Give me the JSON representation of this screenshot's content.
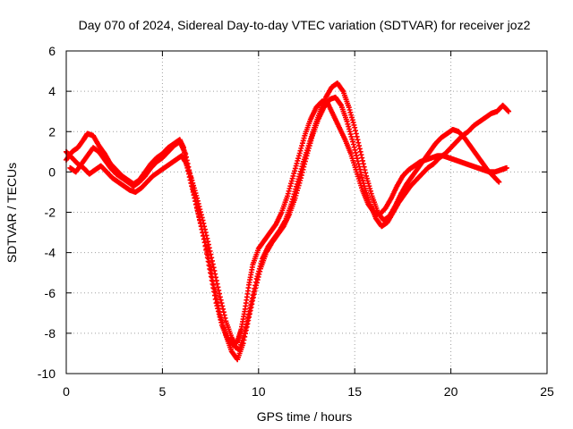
{
  "chart_data": {
    "type": "scatter",
    "title": "Day 070 of 2024, Sidereal Day-to-day VTEC variation (SDTVAR) for receiver joz2",
    "xlabel": "GPS time / hours",
    "ylabel": "SDTVAR / TECUs",
    "xlim": [
      0,
      25
    ],
    "ylim": [
      -10,
      6
    ],
    "x_ticks": [
      "0",
      "5",
      "10",
      "15",
      "20",
      "25"
    ],
    "y_ticks": [
      "-10",
      "-8",
      "-6",
      "-4",
      "-2",
      "0",
      "2",
      "4",
      "6"
    ],
    "grid": true,
    "marker": "+",
    "color": "#ff0000",
    "series": [
      {
        "x": [
          0.0,
          0.3,
          0.6,
          0.9,
          1.1,
          1.4,
          1.7,
          2.0,
          2.3,
          2.6,
          2.9,
          3.2,
          3.5,
          3.8,
          4.1,
          4.4,
          4.7,
          5.0,
          5.3,
          5.6,
          5.9,
          6.1,
          6.3,
          6.6,
          6.9,
          7.2,
          7.5,
          7.8,
          8.1,
          8.4,
          8.7,
          8.9,
          9.1,
          9.3,
          9.5,
          9.7,
          10.0,
          10.3,
          10.6,
          10.9,
          11.2,
          11.5,
          11.8,
          12.1,
          12.4,
          12.7,
          13.0,
          13.3,
          13.6,
          13.9,
          14.2,
          14.5,
          14.8,
          15.1,
          15.4,
          15.7,
          16.0,
          16.3,
          16.6,
          16.9,
          17.2,
          17.5,
          17.8,
          18.1,
          18.4,
          18.7,
          19.0,
          19.3,
          19.6,
          19.9,
          20.2,
          20.5,
          20.8,
          21.1,
          21.4,
          21.7,
          22.0,
          22.3,
          22.6,
          22.9
        ],
        "y": [
          0.6,
          1.0,
          1.2,
          1.6,
          1.9,
          1.8,
          1.3,
          0.9,
          0.4,
          0.1,
          -0.2,
          -0.4,
          -0.6,
          -0.4,
          0.0,
          0.4,
          0.7,
          0.9,
          1.2,
          1.4,
          1.6,
          1.2,
          0.2,
          -1.0,
          -2.2,
          -3.5,
          -5.0,
          -6.5,
          -7.6,
          -8.3,
          -8.6,
          -8.4,
          -7.8,
          -6.8,
          -5.6,
          -4.6,
          -3.8,
          -3.4,
          -3.0,
          -2.6,
          -2.0,
          -1.2,
          -0.2,
          0.8,
          1.8,
          2.6,
          3.2,
          3.5,
          3.4,
          2.8,
          2.2,
          1.6,
          0.9,
          0.0,
          -0.9,
          -1.6,
          -2.0,
          -2.1,
          -1.8,
          -1.3,
          -0.7,
          -0.2,
          0.1,
          0.3,
          0.5,
          0.6,
          0.7,
          0.8,
          0.8,
          0.7,
          0.6,
          0.5,
          0.4,
          0.3,
          0.2,
          0.1,
          0.0,
          0.0,
          0.1,
          0.2
        ]
      },
      {
        "x": [
          0.0,
          0.3,
          0.6,
          0.9,
          1.2,
          1.5,
          1.8,
          2.1,
          2.4,
          2.7,
          3.0,
          3.3,
          3.6,
          3.9,
          4.2,
          4.5,
          4.8,
          5.1,
          5.4,
          5.7,
          6.0,
          6.2,
          6.5,
          6.8,
          7.1,
          7.4,
          7.7,
          8.0,
          8.3,
          8.6,
          8.8,
          9.0,
          9.3,
          9.6,
          9.9,
          10.2,
          10.5,
          10.8,
          11.1,
          11.4,
          11.7,
          12.0,
          12.3,
          12.6,
          12.9,
          13.2,
          13.5,
          13.8,
          14.1,
          14.4,
          14.7,
          15.0,
          15.3,
          15.6,
          15.9,
          16.2,
          16.5,
          16.8,
          17.1,
          17.4,
          17.7,
          18.0,
          18.3,
          18.6,
          18.9,
          19.2,
          19.5,
          19.8,
          20.1,
          20.4,
          20.7,
          21.0,
          21.3,
          21.6,
          21.9,
          22.2,
          22.5
        ],
        "y": [
          1.0,
          0.7,
          0.4,
          0.2,
          -0.1,
          0.1,
          0.3,
          0.0,
          -0.3,
          -0.5,
          -0.7,
          -0.9,
          -1.0,
          -0.8,
          -0.5,
          -0.2,
          0.0,
          0.2,
          0.4,
          0.6,
          0.8,
          0.5,
          -0.3,
          -1.3,
          -2.4,
          -3.6,
          -4.9,
          -6.2,
          -7.4,
          -8.2,
          -8.7,
          -8.8,
          -7.9,
          -6.6,
          -5.3,
          -4.3,
          -3.7,
          -3.3,
          -2.9,
          -2.4,
          -1.6,
          -0.6,
          0.4,
          1.3,
          2.2,
          3.0,
          3.7,
          4.2,
          4.4,
          4.0,
          3.2,
          2.2,
          1.0,
          -0.2,
          -1.2,
          -2.0,
          -2.4,
          -2.2,
          -1.7,
          -1.1,
          -0.6,
          -0.2,
          0.2,
          0.6,
          1.0,
          1.4,
          1.7,
          1.9,
          2.1,
          2.0,
          1.7,
          1.3,
          0.9,
          0.5,
          0.1,
          -0.2,
          -0.5
        ]
      },
      {
        "x": [
          0.2,
          0.5,
          0.8,
          1.1,
          1.4,
          1.7,
          2.0,
          2.3,
          2.6,
          2.9,
          3.2,
          3.5,
          3.8,
          4.1,
          4.4,
          4.7,
          5.0,
          5.3,
          5.6,
          5.9,
          6.2,
          6.5,
          6.8,
          7.1,
          7.4,
          7.7,
          8.0,
          8.3,
          8.6,
          8.9,
          9.2,
          9.5,
          9.8,
          10.1,
          10.4,
          10.7,
          11.0,
          11.3,
          11.6,
          11.9,
          12.2,
          12.5,
          12.8,
          13.1,
          13.4,
          13.7,
          14.0,
          14.3,
          14.6,
          14.9,
          15.2,
          15.5,
          15.8,
          16.1,
          16.4,
          16.7,
          17.0,
          17.3,
          17.6,
          17.9,
          18.2,
          18.5,
          18.8,
          19.1,
          19.4,
          19.7,
          20.0,
          20.3,
          20.6,
          20.9,
          21.2,
          21.5,
          21.8,
          22.1,
          22.4,
          22.7,
          23.0
        ],
        "y": [
          0.2,
          0.0,
          0.4,
          0.8,
          1.2,
          1.0,
          0.6,
          0.2,
          -0.1,
          -0.3,
          -0.5,
          -0.7,
          -0.5,
          -0.2,
          0.2,
          0.5,
          0.7,
          1.0,
          1.3,
          1.5,
          0.9,
          -0.4,
          -1.8,
          -3.0,
          -4.3,
          -5.8,
          -7.1,
          -8.1,
          -8.9,
          -9.3,
          -8.5,
          -7.2,
          -5.9,
          -4.8,
          -4.0,
          -3.5,
          -3.1,
          -2.7,
          -2.1,
          -1.3,
          -0.3,
          0.8,
          1.8,
          2.6,
          3.2,
          3.6,
          3.7,
          3.3,
          2.5,
          1.5,
          0.4,
          -0.7,
          -1.6,
          -2.3,
          -2.7,
          -2.5,
          -2.0,
          -1.5,
          -1.1,
          -0.7,
          -0.4,
          -0.1,
          0.2,
          0.4,
          0.7,
          0.9,
          1.2,
          1.5,
          1.8,
          2.0,
          2.3,
          2.5,
          2.7,
          2.9,
          3.0,
          3.3,
          3.0
        ]
      }
    ]
  }
}
